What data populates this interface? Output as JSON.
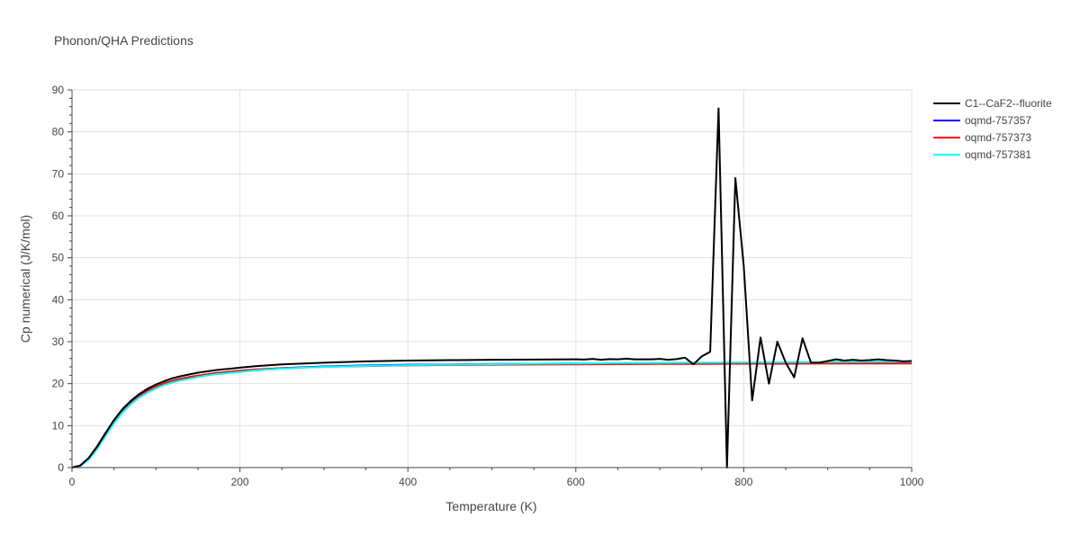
{
  "chart_data": {
    "type": "line",
    "title": "Phonon/QHA Predictions",
    "xlabel": "Temperature (K)",
    "ylabel": "Cp numerical (J/K/mol)",
    "xlim": [
      0,
      1000
    ],
    "ylim": [
      0,
      90
    ],
    "x_ticks": [
      0,
      200,
      400,
      600,
      800,
      1000
    ],
    "y_ticks": [
      0,
      10,
      20,
      30,
      40,
      50,
      60,
      70,
      80,
      90
    ],
    "grid": true,
    "legend_position": "top-right",
    "series": [
      {
        "name": "C1--CaF2--fluorite",
        "color": "#000000",
        "x": [
          0,
          10,
          20,
          30,
          40,
          50,
          60,
          70,
          80,
          90,
          100,
          110,
          120,
          130,
          140,
          150,
          160,
          170,
          180,
          200,
          220,
          250,
          300,
          350,
          400,
          450,
          500,
          550,
          600,
          610,
          620,
          630,
          640,
          650,
          660,
          670,
          680,
          690,
          700,
          710,
          720,
          730,
          740,
          750,
          760,
          770,
          780,
          790,
          800,
          810,
          820,
          830,
          840,
          850,
          860,
          870,
          880,
          890,
          900,
          910,
          920,
          930,
          940,
          950,
          960,
          970,
          980,
          990,
          1000
        ],
        "y": [
          0,
          0.5,
          2.3,
          5.0,
          8.2,
          11.3,
          13.9,
          15.9,
          17.5,
          18.8,
          19.8,
          20.6,
          21.3,
          21.8,
          22.2,
          22.6,
          22.9,
          23.2,
          23.4,
          23.8,
          24.2,
          24.6,
          25.0,
          25.3,
          25.5,
          25.6,
          25.7,
          25.75,
          25.8,
          25.75,
          25.9,
          25.7,
          25.85,
          25.8,
          25.95,
          25.8,
          25.8,
          25.8,
          25.9,
          25.7,
          25.85,
          26.2,
          24.6,
          26.5,
          27.6,
          85.6,
          0,
          69.0,
          48.0,
          16.0,
          31.0,
          20.0,
          30.0,
          25.0,
          21.5,
          30.8,
          25.0,
          25.0,
          25.4,
          25.8,
          25.5,
          25.7,
          25.5,
          25.6,
          25.8,
          25.6,
          25.5,
          25.3,
          25.4
        ]
      },
      {
        "name": "oqmd-757357",
        "color": "#0000ff",
        "x": [
          0,
          10,
          20,
          30,
          40,
          50,
          60,
          70,
          80,
          90,
          100,
          110,
          120,
          130,
          140,
          150,
          160,
          170,
          180,
          200,
          220,
          250,
          300,
          350,
          400,
          450,
          500,
          550,
          600,
          650,
          700,
          750,
          800,
          850,
          900,
          950,
          1000
        ],
        "y": [
          0,
          0.4,
          2.0,
          4.6,
          7.7,
          10.7,
          13.3,
          15.3,
          16.9,
          18.1,
          19.1,
          19.9,
          20.5,
          21.0,
          21.4,
          21.8,
          22.1,
          22.4,
          22.6,
          23.0,
          23.3,
          23.7,
          24.1,
          24.35,
          24.5,
          24.6,
          24.7,
          24.75,
          24.8,
          24.85,
          24.9,
          24.95,
          25.0,
          25.0,
          25.05,
          25.1,
          25.1
        ]
      },
      {
        "name": "oqmd-757373",
        "color": "#ff0000",
        "x": [
          0,
          10,
          20,
          30,
          40,
          50,
          60,
          70,
          80,
          90,
          100,
          110,
          120,
          130,
          140,
          150,
          160,
          170,
          180,
          200,
          220,
          250,
          300,
          350,
          400,
          450,
          500,
          550,
          600,
          650,
          700,
          750,
          800,
          850,
          900,
          950,
          1000
        ],
        "y": [
          0,
          0.5,
          2.3,
          5.1,
          8.3,
          11.3,
          13.8,
          15.7,
          17.2,
          18.4,
          19.3,
          20.1,
          20.7,
          21.2,
          21.6,
          21.9,
          22.2,
          22.5,
          22.7,
          23.1,
          23.4,
          23.7,
          24.0,
          24.2,
          24.35,
          24.45,
          24.5,
          24.55,
          24.6,
          24.65,
          24.7,
          24.7,
          24.75,
          24.75,
          24.8,
          24.8,
          24.8
        ]
      },
      {
        "name": "oqmd-757381",
        "color": "#00ffff",
        "x": [
          0,
          10,
          20,
          30,
          40,
          50,
          60,
          70,
          80,
          90,
          100,
          110,
          120,
          130,
          140,
          150,
          160,
          170,
          180,
          200,
          220,
          250,
          300,
          350,
          400,
          450,
          500,
          550,
          600,
          650,
          700,
          750,
          800,
          850,
          900,
          950,
          1000
        ],
        "y": [
          0,
          0.4,
          1.9,
          4.5,
          7.6,
          10.6,
          13.1,
          15.1,
          16.7,
          17.9,
          18.9,
          19.7,
          20.3,
          20.8,
          21.2,
          21.6,
          21.9,
          22.2,
          22.4,
          22.8,
          23.2,
          23.6,
          24.0,
          24.25,
          24.4,
          24.55,
          24.65,
          24.75,
          24.8,
          24.9,
          24.95,
          25.0,
          25.05,
          25.1,
          25.15,
          25.2,
          25.2
        ]
      }
    ]
  }
}
